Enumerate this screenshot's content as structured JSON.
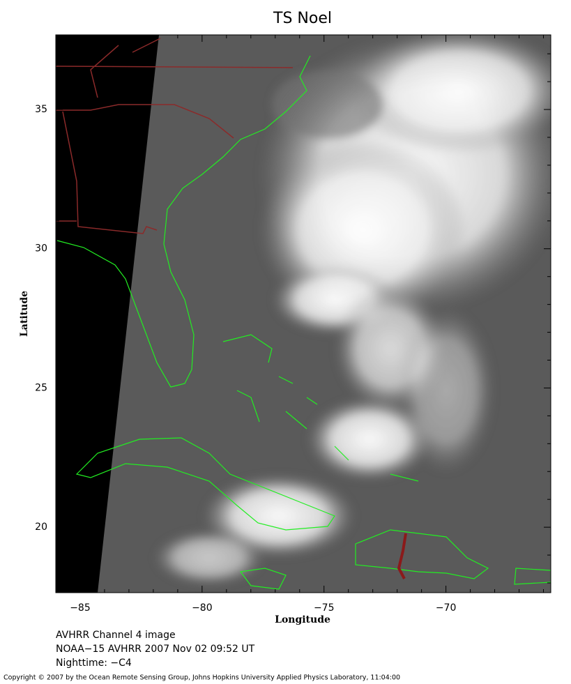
{
  "chart_data": {
    "type": "map",
    "title": "TS Noel",
    "x_label": "Longitude",
    "y_label": "Latitude",
    "xlim": [
      -86,
      -65.7
    ],
    "ylim": [
      17.65,
      37.68
    ],
    "xticks": [
      {
        "value": -85,
        "label": "−85"
      },
      {
        "value": -80,
        "label": "−80"
      },
      {
        "value": -75,
        "label": "−75"
      },
      {
        "value": -70,
        "label": "−70"
      }
    ],
    "yticks": [
      20,
      25,
      30,
      35
    ],
    "xminor_ticks": [
      -84,
      -83,
      -82,
      -81,
      -79,
      -78,
      -77,
      -76,
      -74,
      -73,
      -72,
      -71,
      -69,
      -68,
      -67,
      -66
    ],
    "yminor_ticks": [
      18,
      19,
      21,
      22,
      23,
      24,
      26,
      27,
      28,
      29,
      31,
      32,
      33,
      34,
      36,
      37
    ],
    "captions": [
      "AVHRR Channel 4 image",
      "NOAA−15 AVHRR 2007 Nov 02 09:52 UT",
      "Nighttime: −C4"
    ],
    "copyright": "Copyright © 2007 by the Ocean Remote Sensing Group, Johns Hopkins University Applied Physics Laboratory, 11:04:00"
  }
}
